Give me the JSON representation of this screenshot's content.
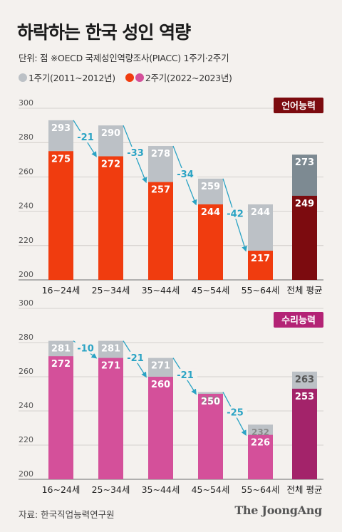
{
  "title": "하락하는 한국 성인 역량",
  "subtitle": "단위: 점  ※OECD 국제성인역량조사(PIACC) 1주기·2주기",
  "legend": {
    "cycle1_label": "1주기(2011~2012년)",
    "cycle2_label": "2주기(2022~2023년)"
  },
  "source": "자료: 한국직업능력연구원",
  "logo": "The JoongAng",
  "colors": {
    "cycle1": "#bcc1c6",
    "literacy_cycle2": "#f03c0f",
    "numeracy_cycle2": "#d4509a",
    "literacy_total_cycle1": "#7d8a92",
    "literacy_total_cycle2": "#7c0b0f",
    "numeracy_total_cycle2": "#a3236a",
    "literacy_badge": "#7c0b0f",
    "numeracy_badge": "#b32375",
    "arrow": "#2aa3c4"
  },
  "chart_data": [
    {
      "type": "bar",
      "badge": "언어능력",
      "categories": [
        "16~24세",
        "25~34세",
        "35~44세",
        "45~54세",
        "55~64세",
        "전체 평균"
      ],
      "series": [
        {
          "name": "1주기(2011~2012년)",
          "values": [
            293,
            290,
            278,
            259,
            244,
            273
          ]
        },
        {
          "name": "2주기(2022~2023년)",
          "values": [
            275,
            272,
            257,
            244,
            217,
            249
          ]
        }
      ],
      "changes": [
        "-21",
        "-33",
        "-34",
        "-42"
      ],
      "yticks": [
        200,
        220,
        240,
        260,
        280,
        300
      ],
      "ylim": [
        200,
        300
      ]
    },
    {
      "type": "bar",
      "badge": "수리능력",
      "categories": [
        "16~24세",
        "25~34세",
        "35~44세",
        "45~54세",
        "55~64세",
        "전체 평균"
      ],
      "series": [
        {
          "name": "1주기(2011~2012년)",
          "values": [
            281,
            281,
            271,
            251,
            232,
            263
          ]
        },
        {
          "name": "2주기(2022~2023년)",
          "values": [
            272,
            271,
            260,
            250,
            226,
            253
          ]
        }
      ],
      "changes": [
        "-10",
        "-21",
        "-21",
        "-25"
      ],
      "yticks": [
        200,
        220,
        240,
        260,
        280,
        300
      ],
      "ylim": [
        200,
        300
      ]
    }
  ]
}
